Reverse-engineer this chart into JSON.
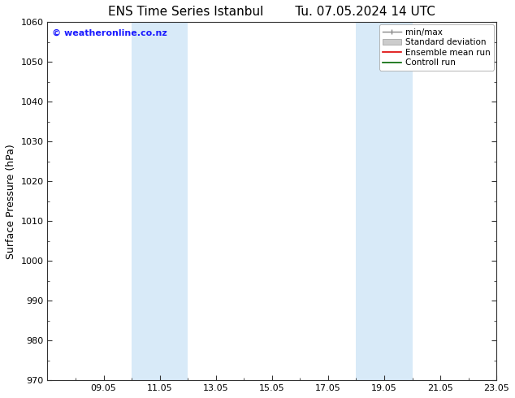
{
  "title_left": "ENS Time Series Istanbul",
  "title_right": "Tu. 07.05.2024 14 UTC",
  "ylabel": "Surface Pressure (hPa)",
  "ylim": [
    970,
    1060
  ],
  "yticks": [
    970,
    980,
    990,
    1000,
    1010,
    1020,
    1030,
    1040,
    1050,
    1060
  ],
  "x_min": 0.0,
  "x_max": 16.0,
  "xtick_labels": [
    "09.05",
    "11.05",
    "13.05",
    "15.05",
    "17.05",
    "19.05",
    "21.05",
    "23.05"
  ],
  "xtick_positions": [
    2.0,
    4.0,
    6.0,
    8.0,
    10.0,
    12.0,
    14.0,
    16.0
  ],
  "shaded_bands": [
    {
      "x_start": 3.0,
      "x_end": 5.0
    },
    {
      "x_start": 11.0,
      "x_end": 13.0
    }
  ],
  "shade_color": "#d8eaf8",
  "watermark": "© weatheronline.co.nz",
  "watermark_color": "#1a1aff",
  "watermark_fontsize": 8,
  "background_color": "#ffffff",
  "spine_color": "#333333",
  "tick_color": "#333333",
  "title_fontsize": 11,
  "label_fontsize": 9,
  "tick_fontsize": 8,
  "legend_fontsize": 7.5
}
